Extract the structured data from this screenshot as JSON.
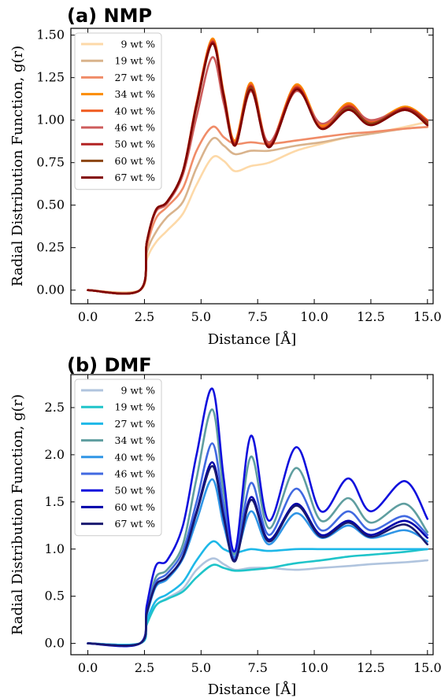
{
  "chart_data": [
    {
      "type": "line",
      "title": "(a) NMP",
      "xlabel": "Distance [Å]",
      "ylabel": "Radial Distribution Function, g(r)",
      "xlim": [
        -0.75,
        15.25
      ],
      "ylim": [
        -0.08,
        1.54
      ],
      "xticks": [
        "0.0",
        "2.5",
        "5.0",
        "7.5",
        "10.0",
        "12.5",
        "15.0"
      ],
      "yticks": [
        "0.00",
        "0.25",
        "0.50",
        "0.75",
        "1.00",
        "1.25",
        "1.50"
      ],
      "legend_position": "upper-left",
      "x": [
        0.0,
        2.3,
        2.6,
        3.0,
        3.5,
        4.2,
        4.8,
        5.5,
        6.0,
        6.5,
        7.2,
        8.0,
        9.2,
        10.3,
        11.5,
        12.5,
        14.0,
        15.0
      ],
      "series": [
        {
          "name": "9 wt %",
          "color": "#fdd9a8",
          "values": [
            0,
            0,
            0.18,
            0.28,
            0.35,
            0.45,
            0.62,
            0.78,
            0.76,
            0.7,
            0.73,
            0.75,
            0.82,
            0.86,
            0.9,
            0.92,
            0.96,
            0.99
          ]
        },
        {
          "name": "19 wt %",
          "color": "#d9b38c",
          "values": [
            0,
            0,
            0.22,
            0.34,
            0.43,
            0.52,
            0.72,
            0.89,
            0.85,
            0.8,
            0.82,
            0.82,
            0.85,
            0.87,
            0.9,
            0.92,
            0.95,
            0.96
          ]
        },
        {
          "name": "27 wt %",
          "color": "#f08c68",
          "values": [
            0,
            0,
            0.25,
            0.42,
            0.49,
            0.6,
            0.82,
            0.96,
            0.9,
            0.86,
            0.87,
            0.86,
            0.88,
            0.9,
            0.92,
            0.93,
            0.95,
            0.96
          ]
        },
        {
          "name": "34 wt %",
          "color": "#fb8c00",
          "values": [
            0,
            0,
            0.28,
            0.47,
            0.52,
            0.7,
            1.1,
            1.48,
            1.16,
            0.88,
            1.22,
            0.86,
            1.21,
            0.97,
            1.1,
            0.99,
            1.08,
            1.0
          ]
        },
        {
          "name": "40 wt %",
          "color": "#f05a1e",
          "values": [
            0,
            0,
            0.28,
            0.47,
            0.52,
            0.7,
            1.1,
            1.47,
            1.15,
            0.87,
            1.21,
            0.86,
            1.2,
            0.96,
            1.09,
            0.99,
            1.07,
            1.0
          ]
        },
        {
          "name": "46 wt %",
          "color": "#cd5c5c",
          "values": [
            0,
            0,
            0.28,
            0.46,
            0.51,
            0.68,
            1.02,
            1.37,
            1.1,
            0.86,
            1.17,
            0.87,
            1.17,
            0.98,
            1.08,
            1.0,
            1.06,
            0.99
          ]
        },
        {
          "name": "50 wt %",
          "color": "#b22222",
          "values": [
            0,
            0,
            0.28,
            0.47,
            0.52,
            0.7,
            1.09,
            1.46,
            1.15,
            0.86,
            1.2,
            0.85,
            1.19,
            0.95,
            1.08,
            0.98,
            1.07,
            0.99
          ]
        },
        {
          "name": "60 wt %",
          "color": "#8b4513",
          "values": [
            0,
            0,
            0.28,
            0.47,
            0.52,
            0.7,
            1.08,
            1.45,
            1.14,
            0.85,
            1.19,
            0.84,
            1.18,
            0.95,
            1.07,
            0.98,
            1.06,
            0.98
          ]
        },
        {
          "name": "67 wt %",
          "color": "#800000",
          "values": [
            0,
            0,
            0.28,
            0.47,
            0.52,
            0.7,
            1.09,
            1.45,
            1.14,
            0.85,
            1.18,
            0.84,
            1.18,
            0.95,
            1.06,
            0.97,
            1.06,
            0.97
          ]
        }
      ]
    },
    {
      "type": "line",
      "title": "(b) DMF",
      "xlabel": "Distance [Å]",
      "ylabel": "Radial Distribution Function, g(r)",
      "xlim": [
        -0.75,
        15.25
      ],
      "ylim": [
        -0.12,
        2.85
      ],
      "xticks": [
        "0.0",
        "2.5",
        "5.0",
        "7.5",
        "10.0",
        "12.5",
        "15.0"
      ],
      "yticks": [
        "0.0",
        "0.5",
        "1.0",
        "1.5",
        "2.0",
        "2.5"
      ],
      "legend_position": "upper-left",
      "x": [
        0.0,
        2.3,
        2.6,
        3.0,
        3.5,
        4.2,
        4.8,
        5.5,
        6.0,
        6.5,
        7.2,
        8.0,
        9.2,
        10.3,
        11.5,
        12.5,
        14.0,
        15.0
      ],
      "series": [
        {
          "name": "9 wt %",
          "color": "#b0c4de",
          "values": [
            0,
            0,
            0.2,
            0.4,
            0.48,
            0.58,
            0.78,
            0.9,
            0.84,
            0.78,
            0.8,
            0.8,
            0.78,
            0.8,
            0.82,
            0.84,
            0.86,
            0.88
          ]
        },
        {
          "name": "19 wt %",
          "color": "#1fc4c9",
          "values": [
            0,
            0,
            0.2,
            0.4,
            0.47,
            0.55,
            0.7,
            0.83,
            0.8,
            0.77,
            0.78,
            0.8,
            0.85,
            0.88,
            0.92,
            0.94,
            0.97,
            1.0
          ]
        },
        {
          "name": "27 wt %",
          "color": "#1eb8e8",
          "values": [
            0,
            0,
            0.24,
            0.45,
            0.52,
            0.65,
            0.88,
            1.08,
            1.0,
            0.96,
            1.0,
            0.98,
            1.0,
            1.0,
            1.0,
            1.0,
            1.0,
            1.0
          ]
        },
        {
          "name": "34 wt %",
          "color": "#5f9ea0",
          "values": [
            0,
            0,
            0.35,
            0.7,
            0.78,
            1.05,
            1.75,
            2.48,
            1.6,
            0.95,
            1.98,
            1.22,
            1.86,
            1.3,
            1.54,
            1.28,
            1.48,
            1.18
          ]
        },
        {
          "name": "40 wt %",
          "color": "#2f95e6",
          "values": [
            0,
            0,
            0.3,
            0.6,
            0.68,
            0.9,
            1.3,
            1.74,
            1.25,
            0.92,
            1.4,
            1.05,
            1.38,
            1.12,
            1.25,
            1.12,
            1.2,
            1.08
          ]
        },
        {
          "name": "46 wt %",
          "color": "#4169e1",
          "values": [
            0,
            0,
            0.33,
            0.65,
            0.74,
            0.98,
            1.5,
            2.12,
            1.45,
            0.9,
            1.7,
            1.15,
            1.64,
            1.2,
            1.4,
            1.2,
            1.35,
            1.15
          ]
        },
        {
          "name": "50 wt %",
          "color": "#1010dd",
          "values": [
            0,
            0,
            0.4,
            0.82,
            0.88,
            1.25,
            2.0,
            2.7,
            1.75,
            0.98,
            2.2,
            1.3,
            2.08,
            1.4,
            1.75,
            1.4,
            1.72,
            1.32
          ]
        },
        {
          "name": "60 wt %",
          "color": "#0000aa",
          "values": [
            0,
            0,
            0.32,
            0.62,
            0.7,
            0.92,
            1.4,
            1.92,
            1.35,
            0.88,
            1.55,
            1.1,
            1.48,
            1.15,
            1.3,
            1.15,
            1.3,
            1.12
          ]
        },
        {
          "name": "67 wt %",
          "color": "#191970",
          "values": [
            0,
            0,
            0.32,
            0.62,
            0.7,
            0.92,
            1.38,
            1.88,
            1.33,
            0.87,
            1.52,
            1.08,
            1.46,
            1.13,
            1.28,
            1.13,
            1.26,
            1.05
          ]
        }
      ]
    }
  ]
}
